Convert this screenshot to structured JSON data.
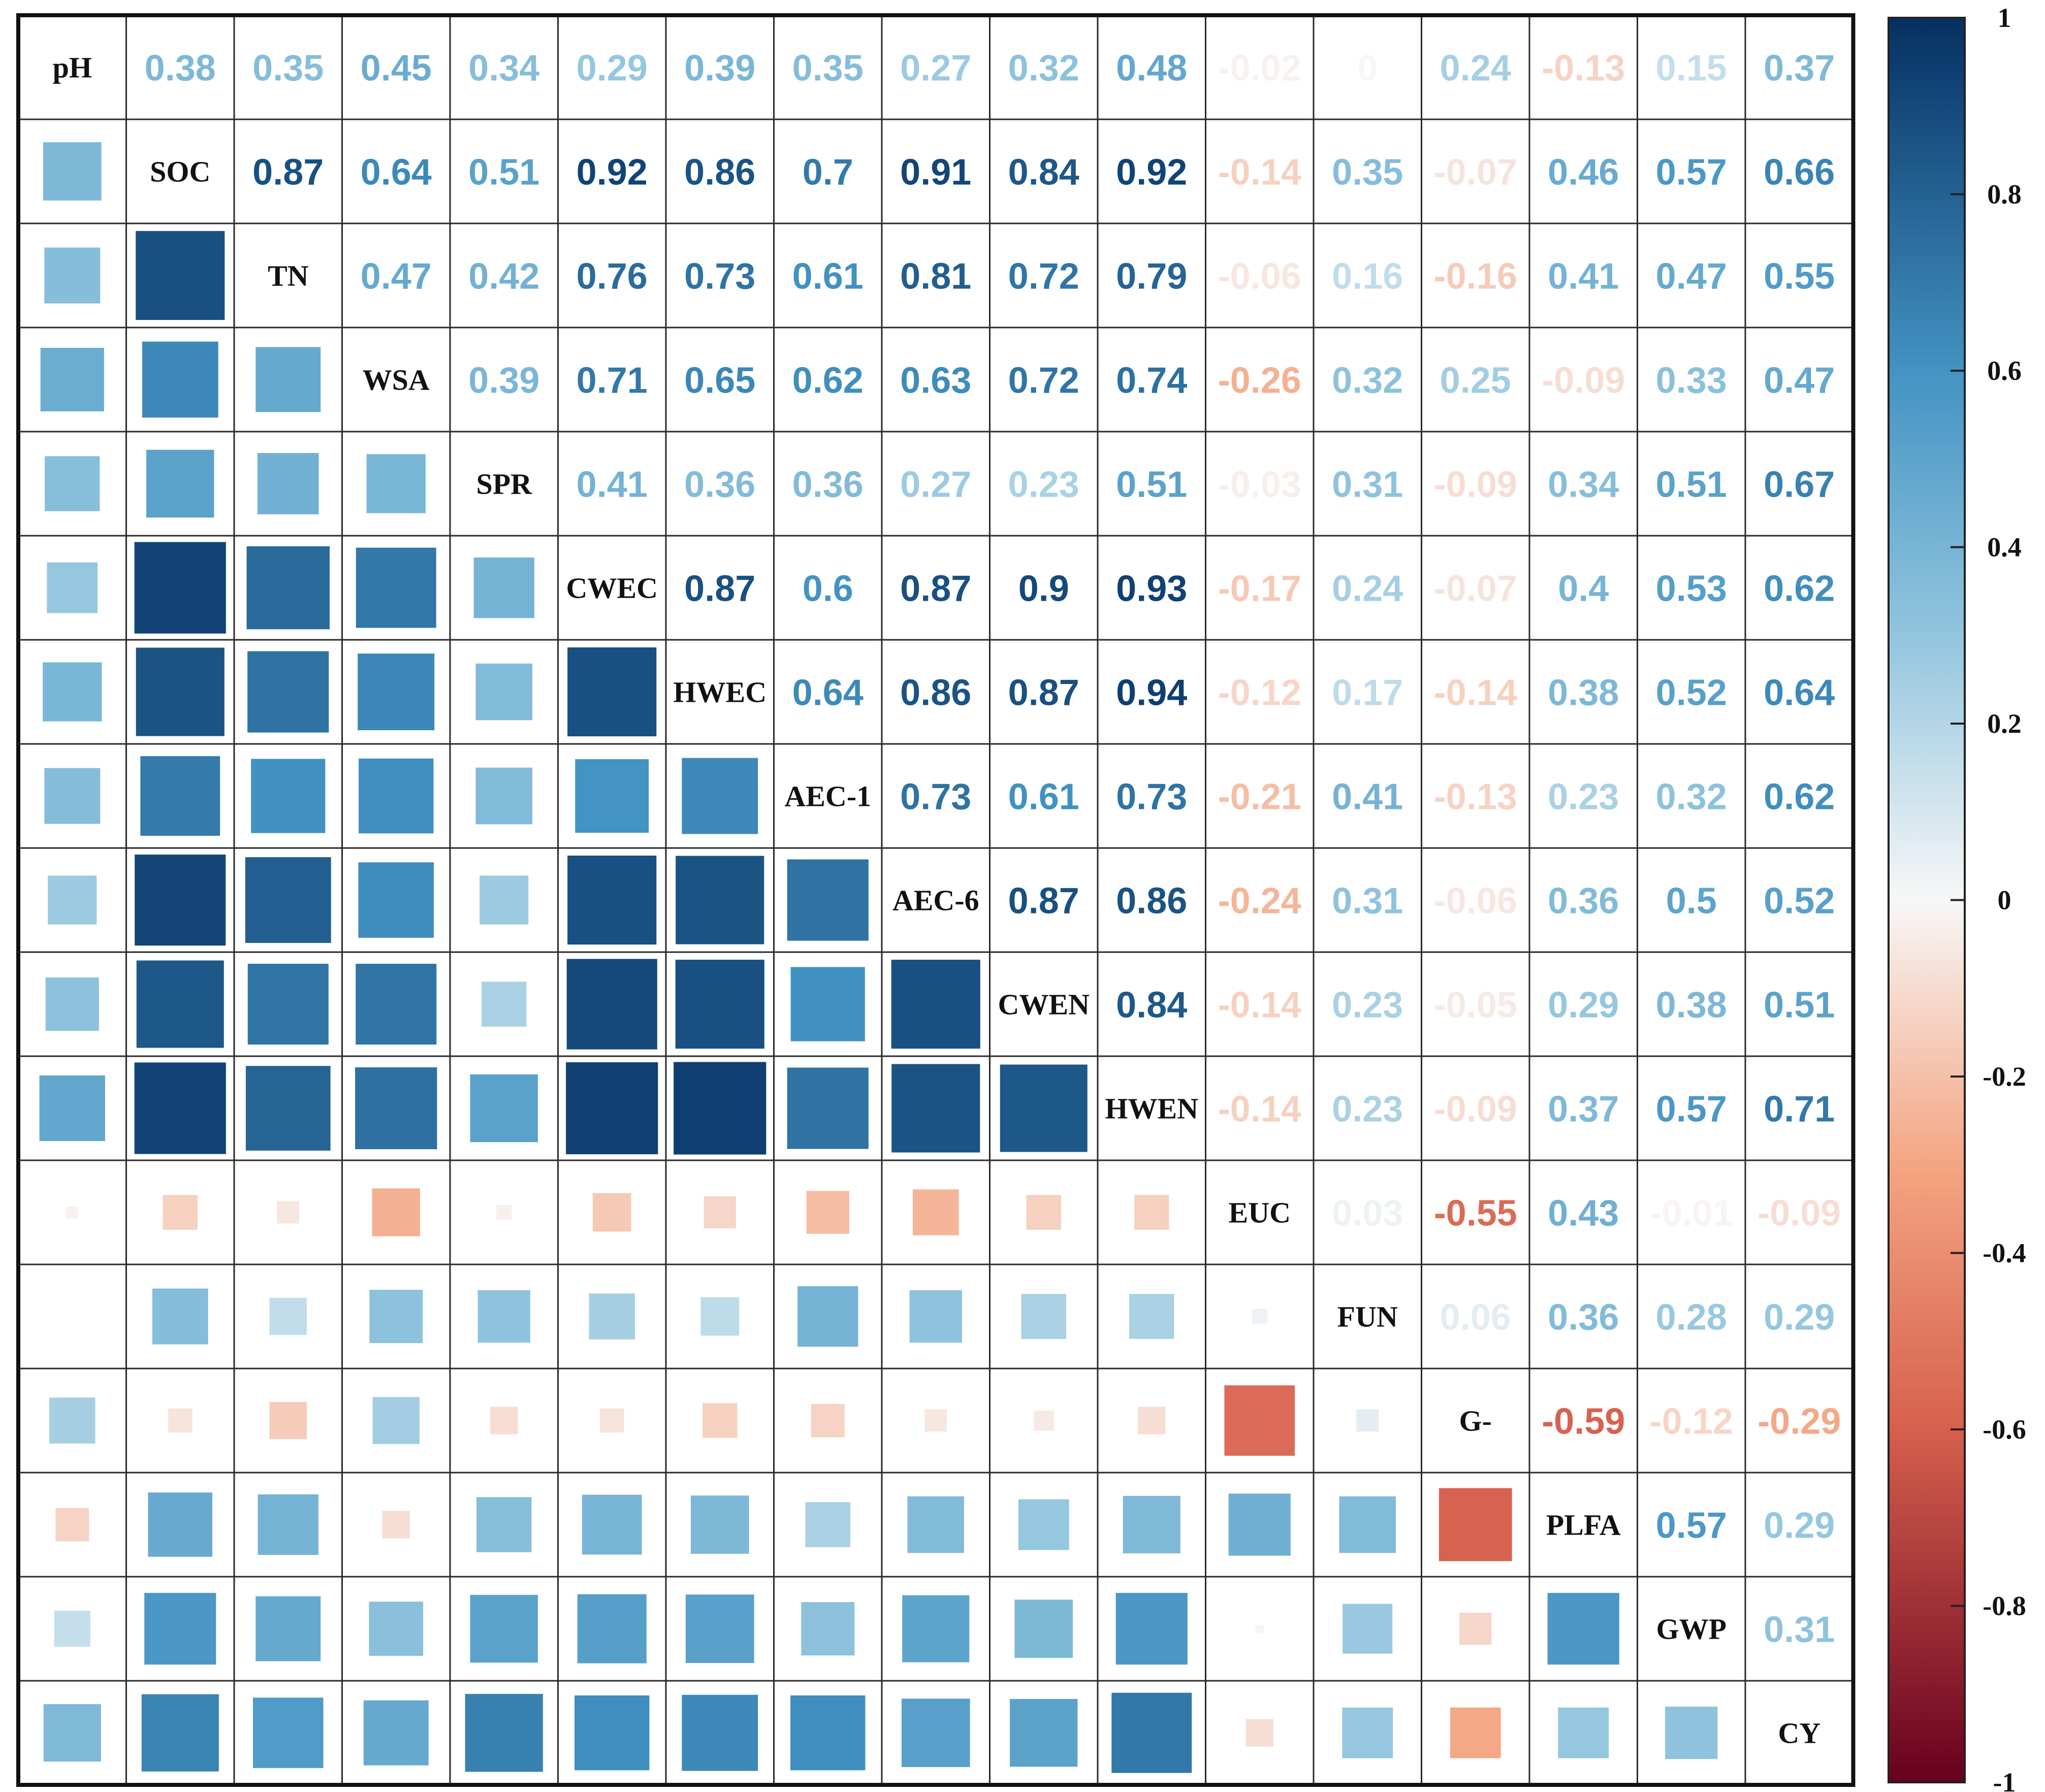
{
  "chart_data": {
    "type": "heatmap",
    "title": "",
    "style": "correlation matrix: lower triangle squares sized by |r|, upper triangle coefficients",
    "variables": [
      "pH",
      "SOC",
      "TN",
      "WSA",
      "SPR",
      "CWEC",
      "HWEC",
      "AEC-1",
      "AEC-6",
      "CWEN",
      "HWEN",
      "EUC",
      "FUN",
      "G-",
      "PLFA",
      "GWP",
      "CY"
    ],
    "upper_labels": [
      [
        "0.38",
        "0.35",
        "0.45",
        "0.34",
        "0.29",
        "0.39",
        "0.35",
        "0.27",
        "0.32",
        "0.48",
        "-0.02",
        "0",
        "0.24",
        "-0.13",
        "0.15",
        "0.37"
      ],
      [
        "0.87",
        "0.64",
        "0.51",
        "0.92",
        "0.86",
        "0.7",
        "0.91",
        "0.84",
        "0.92",
        "-0.14",
        "0.35",
        "-0.07",
        "0.46",
        "0.57",
        "0.66"
      ],
      [
        "0.47",
        "0.42",
        "0.76",
        "0.73",
        "0.61",
        "0.81",
        "0.72",
        "0.79",
        "-0.06",
        "0.16",
        "-0.16",
        "0.41",
        "0.47",
        "0.55"
      ],
      [
        "0.39",
        "0.71",
        "0.65",
        "0.62",
        "0.63",
        "0.72",
        "0.74",
        "-0.26",
        "0.32",
        "0.25",
        "-0.09",
        "0.33",
        "0.47"
      ],
      [
        "0.41",
        "0.36",
        "0.36",
        "0.27",
        "0.23",
        "0.51",
        "-0.03",
        "0.31",
        "-0.09",
        "0.34",
        "0.51",
        "0.67"
      ],
      [
        "0.87",
        "0.6",
        "0.87",
        "0.9",
        "0.93",
        "-0.17",
        "0.24",
        "-0.07",
        "0.4",
        "0.53",
        "0.62"
      ],
      [
        "0.64",
        "0.86",
        "0.87",
        "0.94",
        "-0.12",
        "0.17",
        "-0.14",
        "0.38",
        "0.52",
        "0.64"
      ],
      [
        "0.73",
        "0.61",
        "0.73",
        "-0.21",
        "0.41",
        "-0.13",
        "0.23",
        "0.32",
        "0.62"
      ],
      [
        "0.87",
        "0.86",
        "-0.24",
        "0.31",
        "-0.06",
        "0.36",
        "0.5",
        "0.52"
      ],
      [
        "0.84",
        "-0.14",
        "0.23",
        "-0.05",
        "0.29",
        "0.38",
        "0.51"
      ],
      [
        "-0.14",
        "0.23",
        "-0.09",
        "0.37",
        "0.57",
        "0.71"
      ],
      [
        "0.03",
        "-0.55",
        "0.43",
        "-0.01",
        "-0.09"
      ],
      [
        "0.06",
        "0.36",
        "0.28",
        "0.29"
      ],
      [
        "-0.59",
        "-0.12",
        "-0.29"
      ],
      [
        "0.57",
        "0.29"
      ],
      [
        "0.31"
      ]
    ],
    "colorbar": {
      "range": [
        -1,
        1
      ],
      "ticks": [
        "1",
        "0.8",
        "0.6",
        "0.4",
        "0.2",
        "0",
        "-0.2",
        "-0.4",
        "-0.6",
        "-0.8",
        "-1"
      ],
      "colors": {
        "neg_end": "#67001f",
        "neg_mid": "#d6604d",
        "neg_low": "#f4a582",
        "zero": "#f7f7f7",
        "pos_low": "#92c5de",
        "pos_mid": "#4393c3",
        "pos_end": "#053061"
      }
    }
  }
}
